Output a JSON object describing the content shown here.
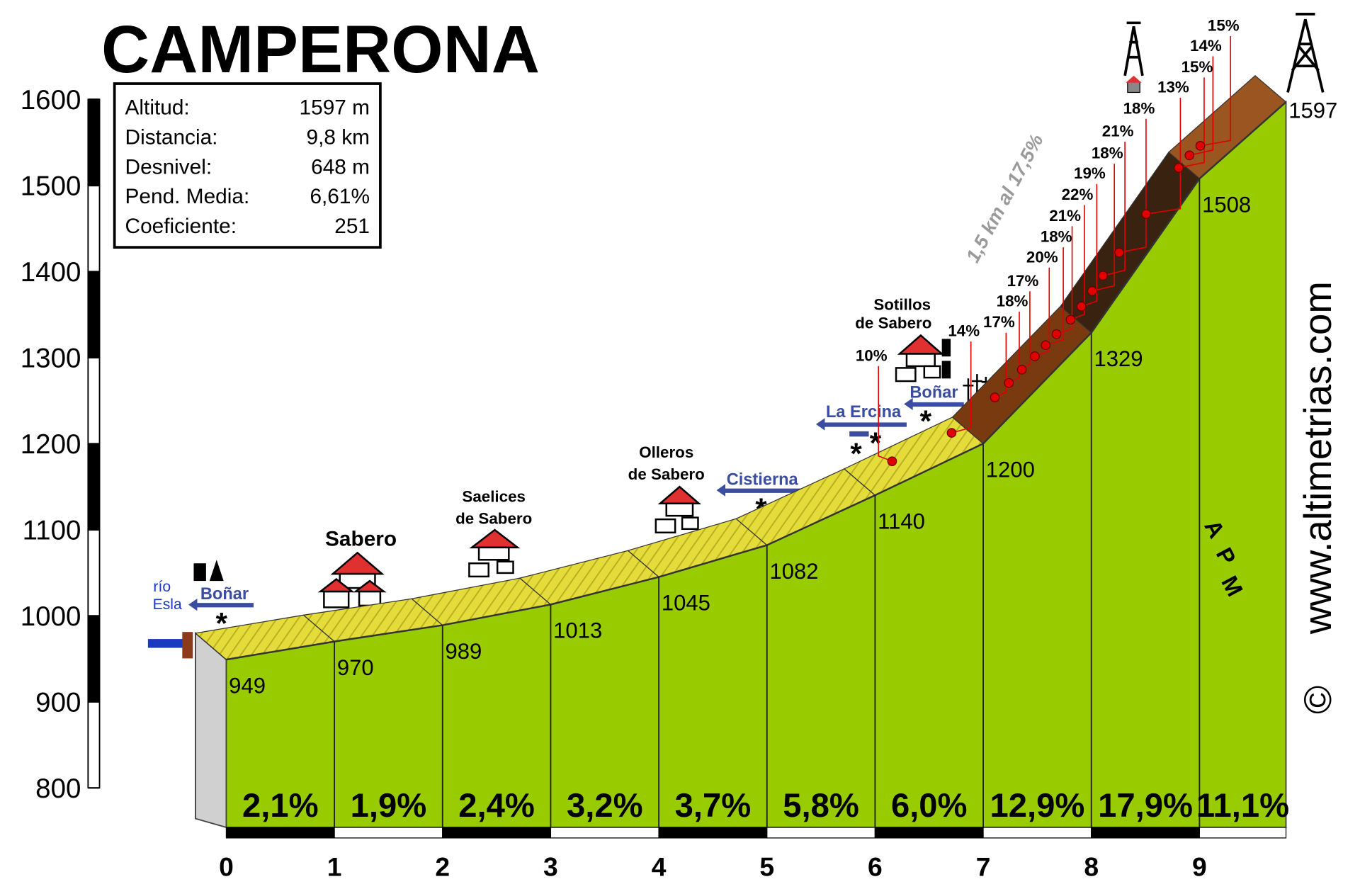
{
  "chart_data": {
    "type": "profile",
    "title": "CAMPERONA",
    "x": [
      0,
      1,
      2,
      3,
      4,
      5,
      6,
      7,
      8,
      9,
      9.8
    ],
    "values": [
      949,
      970,
      989,
      1013,
      1045,
      1082,
      1140,
      1200,
      1329,
      1508,
      1597
    ],
    "xlim": [
      0,
      9.8
    ],
    "xticks": [
      0,
      1,
      2,
      3,
      4,
      5,
      6,
      7,
      8,
      9
    ],
    "ylim": [
      800,
      1600
    ],
    "yticks": [
      800,
      900,
      1000,
      1100,
      1200,
      1300,
      1400,
      1500,
      1600
    ],
    "color": "#99cc00",
    "segments": {
      "values": [
        2.1,
        1.9,
        2.4,
        3.2,
        3.7,
        5.8,
        6.0,
        12.9,
        17.9,
        11.1
      ],
      "value_labels": [
        "2,1%",
        "1,9%",
        "2,4%",
        "3,2%",
        "3,7%",
        "5,8%",
        "6,0%",
        "12,9%",
        "17,9%",
        "11,1%"
      ]
    },
    "info": [
      {
        "label": "Altitud:",
        "value": "1597 m"
      },
      {
        "label": "Distancia:",
        "value": "9,8 km"
      },
      {
        "label": "Desnivel:",
        "value": "648 m"
      },
      {
        "label": "Pend. Media:",
        "value": "6,61%"
      },
      {
        "label": "Coeficiente:",
        "value": "251"
      }
    ],
    "places": [
      {
        "lines": [
          "Sabero"
        ]
      },
      {
        "lines": [
          "Saelices",
          "de Sabero"
        ]
      },
      {
        "lines": [
          "Olleros",
          "de Sabero"
        ]
      },
      {
        "lines": [
          "Sotillos",
          "de Sabero"
        ]
      }
    ],
    "roads": [
      "Boñar",
      "Cistierna",
      "La Ercina",
      "Boñar"
    ],
    "river": [
      "río",
      "Esla"
    ],
    "slope_labels": [
      "10%",
      "14%",
      "17%",
      "18%",
      "17%",
      "20%",
      "18%",
      "21%",
      "22%",
      "19%",
      "18%",
      "21%",
      "18%",
      "13%",
      "15%",
      "14%",
      "15%"
    ],
    "climb_note": "1,5 km al 17,5%",
    "logo": [
      "A",
      "P",
      "M"
    ],
    "website": "www.altimetrias.com",
    "copyright": "©"
  }
}
